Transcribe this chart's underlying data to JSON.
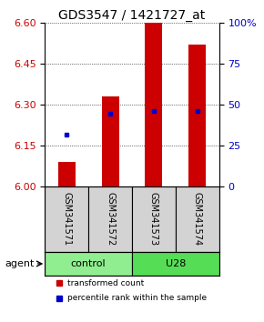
{
  "title": "GDS3547 / 1421727_at",
  "samples": [
    "GSM341571",
    "GSM341572",
    "GSM341573",
    "GSM341574"
  ],
  "bar_values": [
    6.09,
    6.33,
    6.6,
    6.52
  ],
  "bar_base": 6.0,
  "blue_markers": [
    6.19,
    6.265,
    6.275,
    6.275
  ],
  "ylim": [
    6.0,
    6.6
  ],
  "yticks_left": [
    6.0,
    6.15,
    6.3,
    6.45,
    6.6
  ],
  "yticks_right": [
    0,
    25,
    50,
    75,
    100
  ],
  "bar_color": "#cc0000",
  "blue_color": "#0000cc",
  "groups": [
    {
      "label": "control",
      "samples": [
        0,
        1
      ],
      "color": "#90ee90"
    },
    {
      "label": "U28",
      "samples": [
        2,
        3
      ],
      "color": "#55dd55"
    }
  ],
  "agent_label": "agent",
  "legend_red": "transformed count",
  "legend_blue": "percentile rank within the sample",
  "title_fontsize": 10,
  "tick_fontsize": 8,
  "bar_width": 0.4
}
